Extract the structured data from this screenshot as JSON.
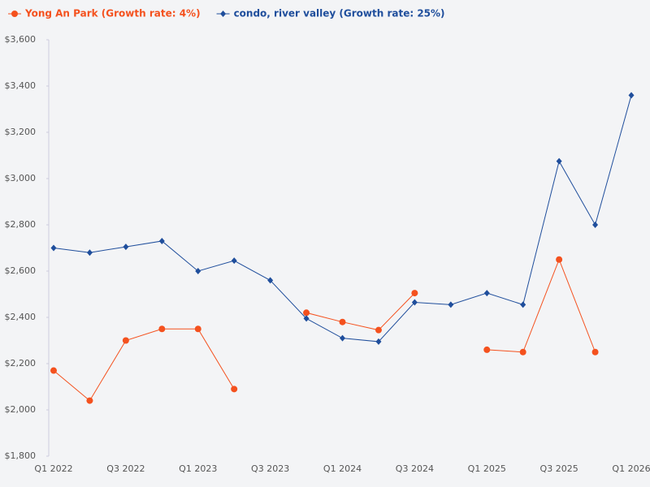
{
  "chart_data": {
    "type": "line",
    "categories": [
      "Q1 2022",
      null,
      "Q3 2022",
      null,
      "Q1 2023",
      null,
      "Q3 2023",
      null,
      "Q1 2024",
      null,
      "Q3 2024",
      null,
      "Q1 2025",
      null,
      "Q3 2025",
      null,
      "Q1 2026"
    ],
    "series": [
      {
        "name": "Yong An Park (Growth rate: 4%)",
        "color": "#f4511e",
        "marker": "circle",
        "values": [
          2170,
          2040,
          2300,
          2350,
          2350,
          2090,
          null,
          2420,
          2380,
          2345,
          2505,
          null,
          2260,
          2250,
          2650,
          2250,
          null
        ]
      },
      {
        "name": "condo, river valley (Growth rate: 25%)",
        "color": "#1f4e9c",
        "marker": "diamond",
        "values": [
          2700,
          2680,
          2705,
          2730,
          2600,
          2645,
          2560,
          2395,
          2310,
          2295,
          2465,
          2455,
          2505,
          2455,
          3075,
          2800,
          3360
        ]
      }
    ],
    "ylim": [
      1800,
      3600
    ],
    "yticks": [
      {
        "value": 1800,
        "label": "$1,800"
      },
      {
        "value": 2000,
        "label": "$2,000"
      },
      {
        "value": 2200,
        "label": "$2,200"
      },
      {
        "value": 2400,
        "label": "$2,400"
      },
      {
        "value": 2600,
        "label": "$2,600"
      },
      {
        "value": 2800,
        "label": "$2,800"
      },
      {
        "value": 3000,
        "label": "$3,000"
      },
      {
        "value": 3200,
        "label": "$3,200"
      },
      {
        "value": 3400,
        "label": "$3,400"
      },
      {
        "value": 3600,
        "label": "$3,600"
      }
    ],
    "grid": false,
    "legend": "top-left"
  }
}
